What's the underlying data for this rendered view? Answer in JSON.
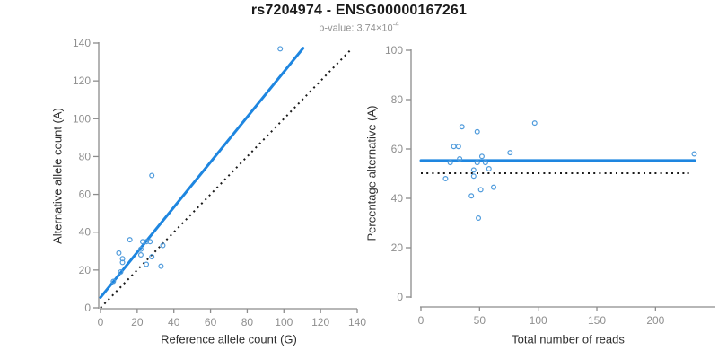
{
  "header": {
    "title": "rs7204974 - ENSG00000167261",
    "subtitle_main": "p-value: 3.74×10",
    "subtitle_exponent": "-4"
  },
  "colors": {
    "trend_line": "#1e86e0",
    "point_stroke": "#4f9bdc",
    "reference_line": "#1a1a1a",
    "axis": "#8c8c8c",
    "tick_label": "#8f8f8f",
    "axis_title": "#2e2e2e",
    "title": "#1a1a1a",
    "subtitle": "#929292"
  },
  "chart_data": [
    {
      "type": "scatter",
      "panel": "allele-counts",
      "xlabel": "Reference allele count (G)",
      "ylabel": "Alternative allele count (A)",
      "xlim": [
        0,
        140
      ],
      "ylim": [
        0,
        140
      ],
      "xticks": [
        0,
        20,
        40,
        60,
        80,
        100,
        120,
        140
      ],
      "yticks": [
        0,
        20,
        40,
        60,
        80,
        100,
        120,
        140
      ],
      "grid": false,
      "points": [
        [
          98,
          137
        ],
        [
          28,
          70
        ],
        [
          16,
          36
        ],
        [
          23,
          35
        ],
        [
          25,
          35
        ],
        [
          27,
          35
        ],
        [
          34,
          33
        ],
        [
          22,
          31
        ],
        [
          10,
          29
        ],
        [
          22,
          28
        ],
        [
          28,
          27
        ],
        [
          12,
          26
        ],
        [
          12,
          24
        ],
        [
          25,
          23
        ],
        [
          33,
          22
        ],
        [
          11,
          19
        ],
        [
          7,
          14
        ]
      ],
      "lines": [
        {
          "name": "regression-line",
          "style": "solid",
          "x1": 0,
          "y1": 5.5,
          "x2": 110.5,
          "y2": 137.3
        },
        {
          "name": "identity-line",
          "style": "dotted",
          "x1": 0,
          "y1": 0,
          "x2": 136.5,
          "y2": 136.5
        }
      ]
    },
    {
      "type": "scatter",
      "panel": "percentage-vs-coverage",
      "xlabel": "Total number of reads",
      "ylabel": "Percentage alternative (A)",
      "xlim": [
        0,
        251
      ],
      "ylim": [
        0,
        100
      ],
      "xticks": [
        0,
        50,
        100,
        150,
        200
      ],
      "yticks": [
        0,
        20,
        40,
        60,
        80,
        100
      ],
      "grid": false,
      "points": [
        [
          35,
          69
        ],
        [
          48,
          67
        ],
        [
          97,
          70.5
        ],
        [
          28,
          61
        ],
        [
          32,
          61
        ],
        [
          33,
          56
        ],
        [
          25,
          54.5
        ],
        [
          52,
          57
        ],
        [
          48,
          54.5
        ],
        [
          55,
          54.5
        ],
        [
          76,
          58.5
        ],
        [
          233,
          58
        ],
        [
          45,
          51.5
        ],
        [
          58,
          52
        ],
        [
          45,
          49
        ],
        [
          21,
          48
        ],
        [
          51,
          43.5
        ],
        [
          62,
          44.5
        ],
        [
          43,
          41
        ],
        [
          49,
          32
        ]
      ],
      "lines": [
        {
          "name": "mean-percentage-line",
          "style": "solid",
          "x1": 0,
          "y1": 55.3,
          "x2": 233.5,
          "y2": 55.3
        },
        {
          "name": "expected-50-line",
          "style": "dotted",
          "x1": 0,
          "y1": 50.2,
          "x2": 228.5,
          "y2": 50.2
        }
      ]
    }
  ]
}
